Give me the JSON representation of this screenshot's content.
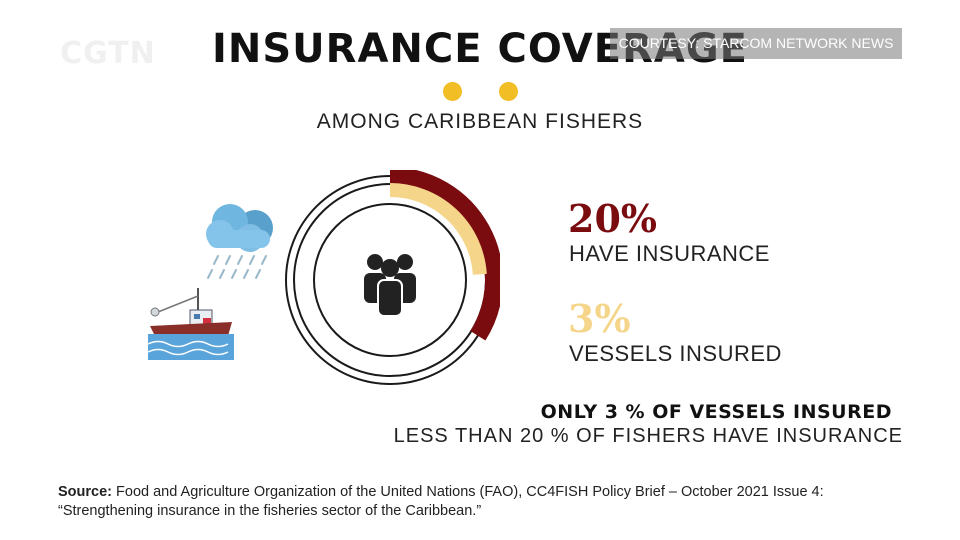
{
  "logo": "CGTN",
  "courtesy": "COURTESY: STARCOM NETWORK NEWS",
  "title": "INSURANCE COVERAGE",
  "subtitle": "AMONG CARIBBEAN FISHERS",
  "colors": {
    "dark_red": "#7a0c10",
    "light_gold": "#f5d58a",
    "dot_yellow": "#f2be25"
  },
  "stats": [
    {
      "value": "20%",
      "label": "HAVE INSURANCE",
      "color": "#7a0c10"
    },
    {
      "value": "3%",
      "label": "VESSELS INSURED",
      "color": "#f5d58a"
    }
  ],
  "headline_bold": "ONLY 3 % OF VESSELS INSURED",
  "headline_thin": "LESS THAN 20 % OF FISHERS HAVE INSURANCE",
  "source": {
    "label": "Source:",
    "text": " Food and Agriculture Organization of the United Nations (FAO), CC4FISH Policy Brief – October 2021 Issue 4: “Strengthening insurance in the fisheries sector of the Caribbean.”"
  },
  "chart_data": {
    "type": "pie",
    "series": [
      {
        "name": "HAVE INSURANCE",
        "value": 20
      },
      {
        "name": "VESSELS INSURED",
        "value": 3
      }
    ]
  },
  "icons": [
    "people-group-icon",
    "rain-cloud-icon",
    "fishing-boat-icon"
  ]
}
